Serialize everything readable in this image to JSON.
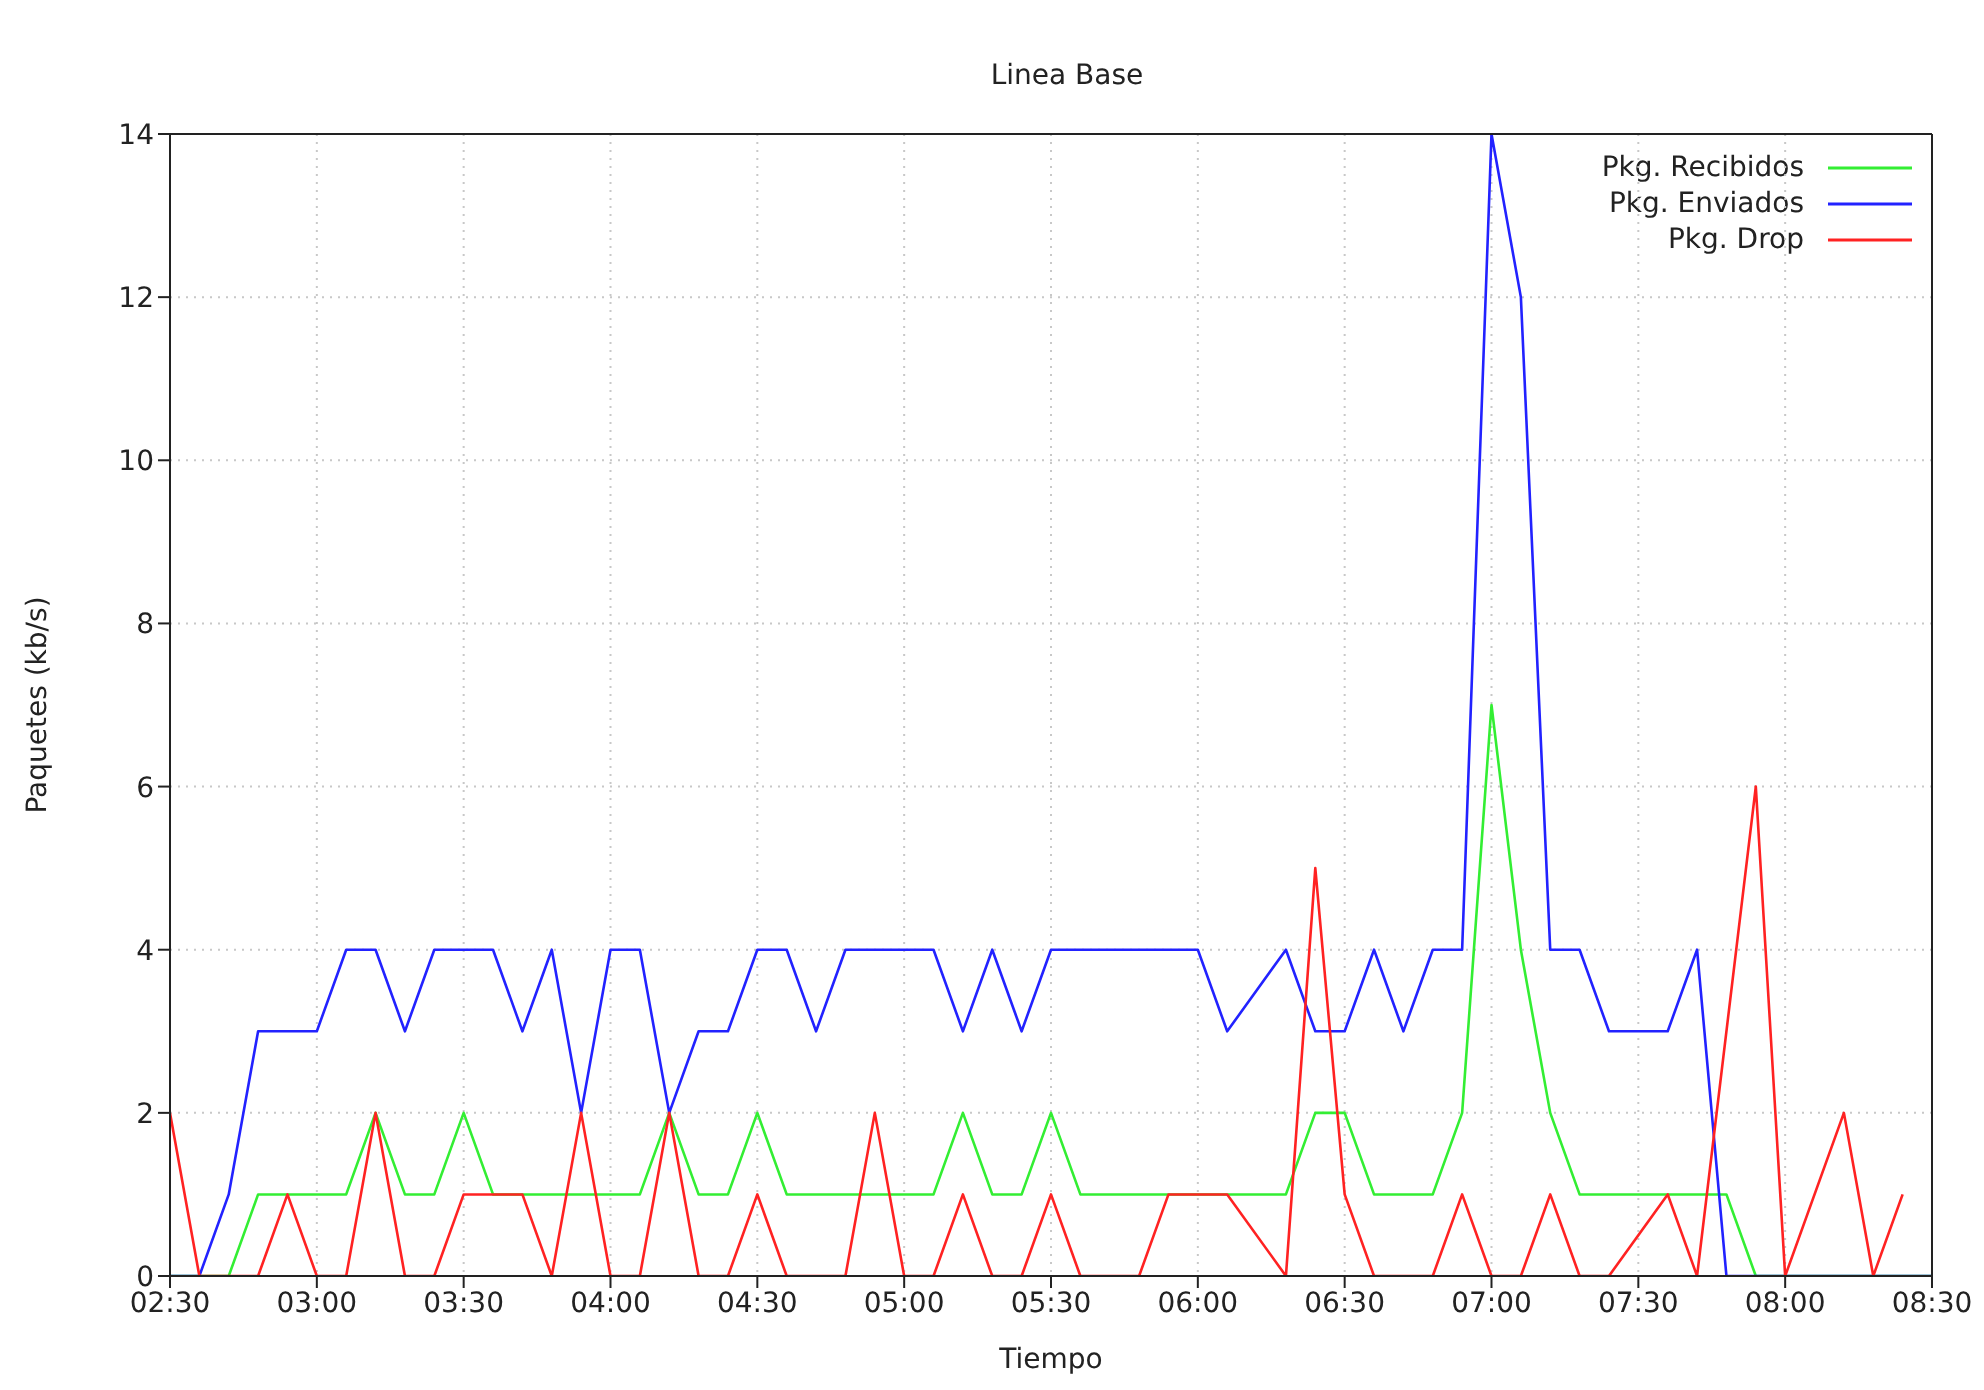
{
  "chart_data": {
    "type": "line",
    "title": "Linea Base",
    "xlabel": "Tiempo",
    "ylabel": "Paquetes (kb/s)",
    "xlim": [
      2.5,
      8.5
    ],
    "xticks": [
      {
        "value": 2.5,
        "label": "02:30"
      },
      {
        "value": 3,
        "label": "03:00"
      },
      {
        "value": 3.5,
        "label": "03:30"
      },
      {
        "value": 4,
        "label": "04:00"
      },
      {
        "value": 4.5,
        "label": "04:30"
      },
      {
        "value": 5,
        "label": "05:00"
      },
      {
        "value": 5.5,
        "label": "05:30"
      },
      {
        "value": 6,
        "label": "06:00"
      },
      {
        "value": 6.5,
        "label": "06:30"
      },
      {
        "value": 7,
        "label": "07:00"
      },
      {
        "value": 7.5,
        "label": "07:30"
      },
      {
        "value": 8,
        "label": "08:00"
      },
      {
        "value": 8.5,
        "label": "08:30"
      }
    ],
    "ylim": [
      0,
      14
    ],
    "yticks": [
      0,
      2,
      4,
      6,
      8,
      10,
      12,
      14
    ],
    "grid": true,
    "legend": "top right",
    "line_style": "solid",
    "marker": "none",
    "series": [
      {
        "name": "Pkg. Recibidos",
        "color": "#33ee33",
        "x": [
          2.5,
          2.7,
          2.8,
          3.1,
          3.2,
          3.3,
          3.4,
          3.5,
          3.6,
          4.1,
          4.2,
          4.3,
          4.4,
          4.5,
          4.6,
          5.1,
          5.2,
          5.3,
          5.4,
          5.5,
          5.6,
          6.3,
          6.4,
          6.5,
          6.6,
          6.8,
          6.9,
          7.0,
          7.1,
          7.2,
          7.3,
          7.8,
          7.9,
          8.5
        ],
        "values": [
          0,
          0,
          1,
          1,
          2,
          1,
          1,
          2,
          1,
          1,
          2,
          1,
          1,
          2,
          1,
          1,
          2,
          1,
          1,
          2,
          1,
          1,
          2,
          2,
          1,
          1,
          2,
          7,
          4,
          2,
          1,
          1,
          0,
          0
        ]
      },
      {
        "name": "Pkg. Enviados",
        "color": "#2222ff",
        "x": [
          2.5,
          2.6,
          2.7,
          2.8,
          3.0,
          3.1,
          3.2,
          3.3,
          3.4,
          3.6,
          3.7,
          3.8,
          3.9,
          4.0,
          4.1,
          4.2,
          4.3,
          4.4,
          4.5,
          4.6,
          4.7,
          4.8,
          5.1,
          5.2,
          5.3,
          5.4,
          5.5,
          6.0,
          6.1,
          6.3,
          6.4,
          6.5,
          6.6,
          6.7,
          6.8,
          6.9,
          7.0,
          7.1,
          7.2,
          7.3,
          7.4,
          7.6,
          7.7,
          7.8,
          8.5
        ],
        "values": [
          0,
          0,
          1,
          3,
          3,
          4,
          4,
          3,
          4,
          4,
          3,
          4,
          2,
          4,
          4,
          2,
          3,
          3,
          4,
          4,
          3,
          4,
          4,
          3,
          4,
          3,
          4,
          4,
          3,
          4,
          3,
          3,
          4,
          3,
          4,
          4,
          14,
          12,
          4,
          4,
          3,
          3,
          4,
          0,
          0
        ]
      },
      {
        "name": "Pkg. Drop",
        "color": "#ff2222",
        "x": [
          2.5,
          2.6,
          2.8,
          2.9,
          3.0,
          3.1,
          3.2,
          3.3,
          3.4,
          3.5,
          3.7,
          3.8,
          3.9,
          4.0,
          4.1,
          4.2,
          4.3,
          4.4,
          4.5,
          4.6,
          4.8,
          4.9,
          5.0,
          5.1,
          5.2,
          5.3,
          5.4,
          5.5,
          5.6,
          5.8,
          5.9,
          6.1,
          6.3,
          6.4,
          6.5,
          6.6,
          6.8,
          6.9,
          7.0,
          7.1,
          7.2,
          7.3,
          7.4,
          7.6,
          7.7,
          7.9,
          8.0,
          8.2,
          8.3,
          8.4
        ],
        "values": [
          2,
          0,
          0,
          1,
          0,
          0,
          2,
          0,
          0,
          1,
          1,
          0,
          2,
          0,
          0,
          2,
          0,
          0,
          1,
          0,
          0,
          2,
          0,
          0,
          1,
          0,
          0,
          1,
          0,
          0,
          1,
          1,
          0,
          5,
          1,
          0,
          0,
          1,
          0,
          0,
          1,
          0,
          0,
          1,
          0,
          6,
          0,
          2,
          0,
          1
        ]
      }
    ]
  }
}
